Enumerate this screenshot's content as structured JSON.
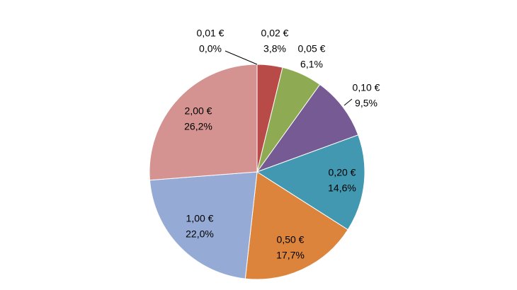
{
  "chart_data": {
    "type": "pie",
    "categories": [
      "0,01 €",
      "0,02 €",
      "0,05 €",
      "0,10 €",
      "0,20 €",
      "0,50 €",
      "1,00 €",
      "2,00 €"
    ],
    "values": [
      0.0,
      3.8,
      6.1,
      9.5,
      14.6,
      17.7,
      22.0,
      26.2
    ],
    "value_labels": [
      "0,0%",
      "3,8%",
      "6,1%",
      "9,5%",
      "14,6%",
      "17,7%",
      "22,0%",
      "26,2%"
    ],
    "colors": [
      "#4f81bd",
      "#b84a48",
      "#8eaa52",
      "#755a93",
      "#4198b0",
      "#dc833c",
      "#95abd5",
      "#d49391"
    ]
  }
}
